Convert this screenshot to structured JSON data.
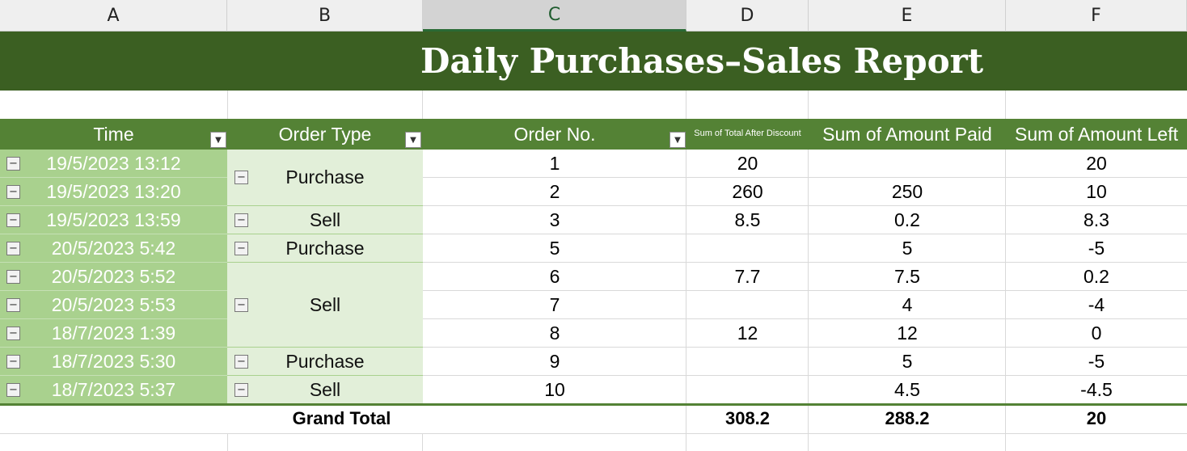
{
  "column_headers": [
    "A",
    "B",
    "C",
    "D",
    "E",
    "F"
  ],
  "selected_column": "C",
  "title": "Daily Purchases–Sales Report",
  "pivot_headers": {
    "time": "Time",
    "order_type": "Order Type",
    "order_no": "Order No.",
    "sum_total_after_discount": "Sum of Total After Discount",
    "sum_amount_paid": "Sum of Amount Paid",
    "sum_amount_left": "Sum of Amount Left"
  },
  "colors": {
    "title_band": "#3b5f22",
    "header_row": "#548235",
    "time_column": "#a9d18e",
    "type_column": "#e2efd9"
  },
  "rows": [
    {
      "time": "19/5/2023 13:12",
      "order_no": "1",
      "total": "20",
      "paid": "",
      "left": "20"
    },
    {
      "time": "19/5/2023 13:20",
      "order_no": "2",
      "total": "260",
      "paid": "250",
      "left": "10"
    },
    {
      "time": "19/5/2023 13:59",
      "order_no": "3",
      "total": "8.5",
      "paid": "0.2",
      "left": "8.3"
    },
    {
      "time": "20/5/2023 5:42",
      "order_no": "5",
      "total": "",
      "paid": "5",
      "left": "-5"
    },
    {
      "time": "20/5/2023 5:52",
      "order_no": "6",
      "total": "7.7",
      "paid": "7.5",
      "left": "0.2"
    },
    {
      "time": "20/5/2023 5:53",
      "order_no": "7",
      "total": "",
      "paid": "4",
      "left": "-4"
    },
    {
      "time": "18/7/2023 1:39",
      "order_no": "8",
      "total": "12",
      "paid": "12",
      "left": "0"
    },
    {
      "time": "18/7/2023 5:30",
      "order_no": "9",
      "total": "",
      "paid": "5",
      "left": "-5"
    },
    {
      "time": "18/7/2023 5:37",
      "order_no": "10",
      "total": "",
      "paid": "4.5",
      "left": "-4.5"
    }
  ],
  "order_type_groups": [
    {
      "label": "Purchase",
      "start": 0,
      "span": 2
    },
    {
      "label": "Sell",
      "start": 2,
      "span": 1
    },
    {
      "label": "Purchase",
      "start": 3,
      "span": 1
    },
    {
      "label": "Sell",
      "start": 4,
      "span": 3
    },
    {
      "label": "Purchase",
      "start": 7,
      "span": 1
    },
    {
      "label": "Sell",
      "start": 8,
      "span": 1
    }
  ],
  "grand_total": {
    "label": "Grand Total",
    "total": "308.2",
    "paid": "288.2",
    "left": "20"
  }
}
